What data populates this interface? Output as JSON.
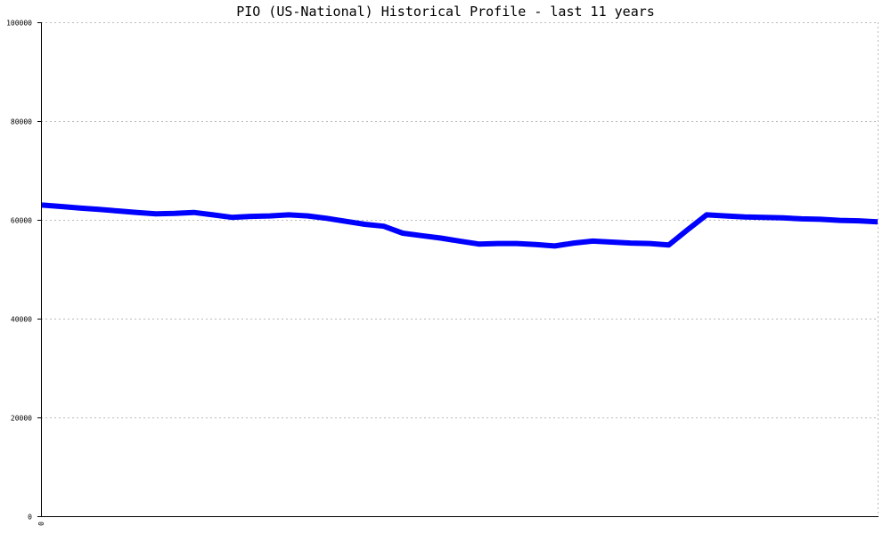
{
  "chart_data": {
    "type": "line",
    "title": "PIO (US-National) Historical Profile - last 11 years",
    "xlabel": "",
    "ylabel": "",
    "ylim": [
      0,
      100000
    ],
    "yticks": [
      0,
      20000,
      40000,
      60000,
      80000,
      100000
    ],
    "xticks": [
      "0"
    ],
    "grid": true,
    "legend": "none",
    "colors": {
      "line": "#0000ff",
      "grid": "#bbbbbb",
      "axis": "#000000"
    },
    "series": [
      {
        "values": [
          63000,
          62700,
          62400,
          62100,
          61800,
          61500,
          61200,
          61300,
          61500,
          61000,
          60500,
          60700,
          60800,
          61000,
          60800,
          60300,
          59700,
          59100,
          58700,
          57300,
          56800,
          56300,
          55700,
          55100,
          55200,
          55200,
          55000,
          54700,
          55300,
          55700,
          55500,
          55300,
          55200,
          54900,
          58000,
          61000,
          60800,
          60600,
          60500,
          60400,
          60200,
          60100,
          59900,
          59800,
          59600
        ]
      }
    ]
  }
}
